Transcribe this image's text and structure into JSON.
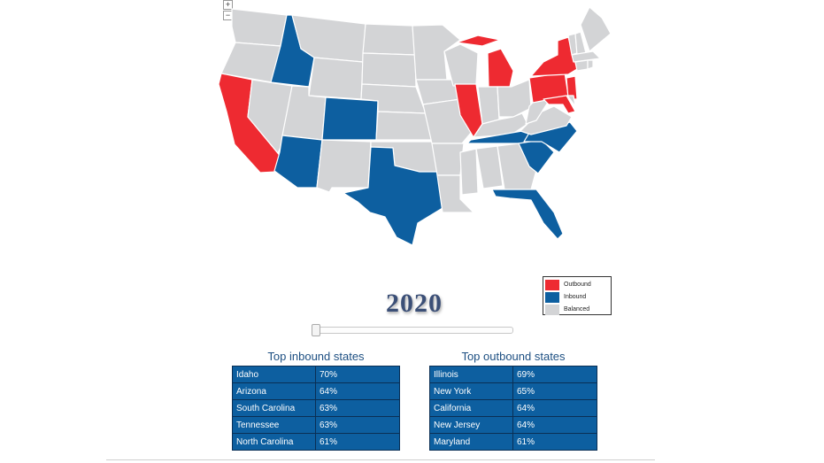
{
  "zoom": {
    "in_label": "+",
    "out_label": "−"
  },
  "colors": {
    "outbound": "#ee2a31",
    "inbound": "#0d5fa0",
    "balanced": "#d3d4d6",
    "border": "#ffffff"
  },
  "map": {
    "states": [
      {
        "code": "WA",
        "status": "balanced"
      },
      {
        "code": "OR",
        "status": "balanced"
      },
      {
        "code": "CA",
        "status": "outbound"
      },
      {
        "code": "NV",
        "status": "balanced"
      },
      {
        "code": "ID",
        "status": "inbound"
      },
      {
        "code": "MT",
        "status": "balanced"
      },
      {
        "code": "WY",
        "status": "balanced"
      },
      {
        "code": "UT",
        "status": "balanced"
      },
      {
        "code": "AZ",
        "status": "inbound"
      },
      {
        "code": "CO",
        "status": "inbound"
      },
      {
        "code": "NM",
        "status": "balanced"
      },
      {
        "code": "ND",
        "status": "balanced"
      },
      {
        "code": "SD",
        "status": "balanced"
      },
      {
        "code": "NE",
        "status": "balanced"
      },
      {
        "code": "KS",
        "status": "balanced"
      },
      {
        "code": "OK",
        "status": "balanced"
      },
      {
        "code": "TX",
        "status": "inbound"
      },
      {
        "code": "MN",
        "status": "balanced"
      },
      {
        "code": "IA",
        "status": "balanced"
      },
      {
        "code": "MO",
        "status": "balanced"
      },
      {
        "code": "AR",
        "status": "balanced"
      },
      {
        "code": "LA",
        "status": "balanced"
      },
      {
        "code": "WI",
        "status": "balanced"
      },
      {
        "code": "IL",
        "status": "outbound"
      },
      {
        "code": "MI",
        "status": "outbound"
      },
      {
        "code": "IN",
        "status": "balanced"
      },
      {
        "code": "OH",
        "status": "balanced"
      },
      {
        "code": "KY",
        "status": "balanced"
      },
      {
        "code": "TN",
        "status": "inbound"
      },
      {
        "code": "MS",
        "status": "balanced"
      },
      {
        "code": "AL",
        "status": "balanced"
      },
      {
        "code": "GA",
        "status": "balanced"
      },
      {
        "code": "FL",
        "status": "inbound"
      },
      {
        "code": "SC",
        "status": "inbound"
      },
      {
        "code": "NC",
        "status": "inbound"
      },
      {
        "code": "VA",
        "status": "balanced"
      },
      {
        "code": "WV",
        "status": "balanced"
      },
      {
        "code": "PA",
        "status": "outbound"
      },
      {
        "code": "NY",
        "status": "outbound"
      },
      {
        "code": "NJ",
        "status": "outbound"
      },
      {
        "code": "MD",
        "status": "outbound"
      },
      {
        "code": "DE",
        "status": "balanced"
      },
      {
        "code": "VT",
        "status": "balanced"
      },
      {
        "code": "NH",
        "status": "balanced"
      },
      {
        "code": "ME",
        "status": "balanced"
      },
      {
        "code": "MA",
        "status": "balanced"
      },
      {
        "code": "CT",
        "status": "balanced"
      },
      {
        "code": "RI",
        "status": "balanced"
      },
      {
        "code": "AK",
        "status": "none"
      },
      {
        "code": "HI",
        "status": "none"
      }
    ]
  },
  "legend": {
    "items": [
      {
        "label": "Outbound",
        "color": "#ee2a31"
      },
      {
        "label": "Inbound",
        "color": "#0d5fa0"
      },
      {
        "label": "Balanced",
        "color": "#d3d4d6"
      }
    ]
  },
  "year": "2020",
  "slider": {
    "value_label": "2020",
    "position": 0
  },
  "inbound": {
    "title": "Top inbound states",
    "rows": [
      {
        "state": "Idaho",
        "pct": "70%"
      },
      {
        "state": "Arizona",
        "pct": "64%"
      },
      {
        "state": "South Carolina",
        "pct": "63%"
      },
      {
        "state": "Tennessee",
        "pct": "63%"
      },
      {
        "state": "North Carolina",
        "pct": "61%"
      }
    ]
  },
  "outbound": {
    "title": "Top outbound states",
    "rows": [
      {
        "state": "Illinois",
        "pct": "69%"
      },
      {
        "state": "New York",
        "pct": "65%"
      },
      {
        "state": "California",
        "pct": "64%"
      },
      {
        "state": "New Jersey",
        "pct": "64%"
      },
      {
        "state": "Maryland",
        "pct": "61%"
      }
    ]
  }
}
